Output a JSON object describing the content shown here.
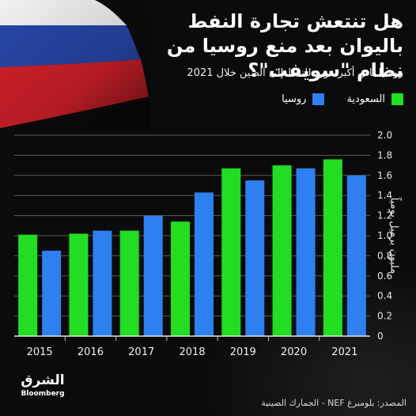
{
  "header": {
    "title": "هل تنتعش تجارة النفط باليوان بعد منع روسيا من نظام \"سويفت\"؟",
    "subtitle": "روسيا ثاني أكبر مورد للنفط إلى الصين خلال 2021"
  },
  "legend": {
    "saudi": "السعودية",
    "russia": "روسيا"
  },
  "source": "المصدر: بلومبرغ NEF - الجمارك الصينية",
  "logo": {
    "name": "الشرق",
    "partner": "Bloomberg"
  },
  "colors": {
    "saudi": "#22dd22",
    "russia": "#2e7ff0",
    "background": "#0b0b0b",
    "grid": "#5a5a5a"
  },
  "chart_data": {
    "type": "bar",
    "categories": [
      "2015",
      "2016",
      "2017",
      "2018",
      "2019",
      "2020",
      "2021"
    ],
    "series": [
      {
        "name": "السعودية",
        "color": "#22dd22",
        "values": [
          1.01,
          1.02,
          1.05,
          1.14,
          1.67,
          1.7,
          1.76
        ]
      },
      {
        "name": "روسيا",
        "color": "#2e7ff0",
        "values": [
          0.85,
          1.05,
          1.2,
          1.43,
          1.55,
          1.67,
          1.6
        ]
      }
    ],
    "title": "هل تنتعش تجارة النفط باليوان بعد منع روسيا من نظام \"سويفت\"؟",
    "ylabel": "مليون برميل يومياً",
    "ylim": [
      0,
      2.0
    ],
    "yticks": [
      "0",
      "0.2",
      "0.4",
      "0.6",
      "0.8",
      "1.0",
      "1.2",
      "1.4",
      "1.6",
      "1.8",
      "2.0"
    ],
    "grid": true,
    "legend_position": "top-right"
  }
}
